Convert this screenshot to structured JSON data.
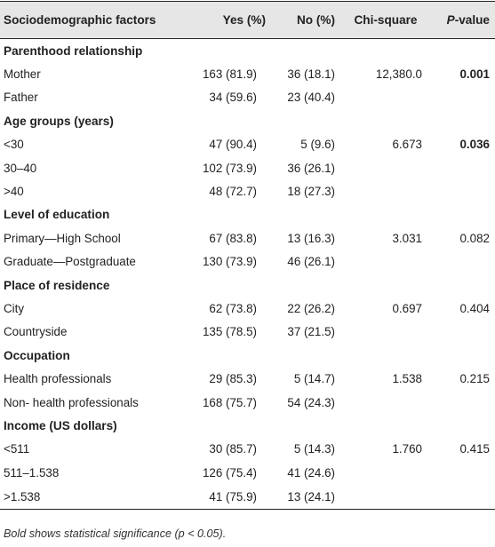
{
  "headers": {
    "factor": "Sociodemographic factors",
    "yes": "Yes (%)",
    "no": "No (%)",
    "chi": "Chi-square",
    "p_italic": "P",
    "p_rest": "-value"
  },
  "sections": [
    {
      "title": "Parenthood relationship",
      "rows": [
        {
          "label": "Mother",
          "yes": "163 (81.9)",
          "no": "36 (18.1)",
          "chi": "12,380.0",
          "p": "0.001",
          "p_bold": true
        },
        {
          "label": "Father",
          "yes": "34 (59.6)",
          "no": "23 (40.4)",
          "chi": "",
          "p": "",
          "p_bold": false
        }
      ]
    },
    {
      "title": "Age groups (years)",
      "rows": [
        {
          "label": "<30",
          "yes": "47 (90.4)",
          "no": "5 (9.6)",
          "chi": "6.673",
          "p": "0.036",
          "p_bold": true
        },
        {
          "label": "30–40",
          "yes": "102 (73.9)",
          "no": "36 (26.1)",
          "chi": "",
          "p": "",
          "p_bold": false
        },
        {
          "label": ">40",
          "yes": "48 (72.7)",
          "no": "18 (27.3)",
          "chi": "",
          "p": "",
          "p_bold": false
        }
      ]
    },
    {
      "title": "Level of education",
      "rows": [
        {
          "label": "Primary—High School",
          "yes": "67 (83.8)",
          "no": "13 (16.3)",
          "chi": "3.031",
          "p": "0.082",
          "p_bold": false
        },
        {
          "label": "Graduate—Postgraduate",
          "yes": "130 (73.9)",
          "no": "46 (26.1)",
          "chi": "",
          "p": "",
          "p_bold": false
        }
      ]
    },
    {
      "title": "Place of residence",
      "rows": [
        {
          "label": "City",
          "yes": "62 (73.8)",
          "no": "22 (26.2)",
          "chi": "0.697",
          "p": "0.404",
          "p_bold": false
        },
        {
          "label": "Countryside",
          "yes": "135 (78.5)",
          "no": "37 (21.5)",
          "chi": "",
          "p": "",
          "p_bold": false
        }
      ]
    },
    {
      "title": "Occupation",
      "rows": [
        {
          "label": "Health professionals",
          "yes": "29 (85.3)",
          "no": "5 (14.7)",
          "chi": "1.538",
          "p": "0.215",
          "p_bold": false
        },
        {
          "label": "Non- health professionals",
          "yes": "168 (75.7)",
          "no": "54 (24.3)",
          "chi": "",
          "p": "",
          "p_bold": false
        }
      ]
    },
    {
      "title": "Income (US dollars)",
      "rows": [
        {
          "label": "<511",
          "yes": "30 (85.7)",
          "no": "5 (14.3)",
          "chi": "1.760",
          "p": "0.415",
          "p_bold": false
        },
        {
          "label": "511–1.538",
          "yes": "126 (75.4)",
          "no": "41 (24.6)",
          "chi": "",
          "p": "",
          "p_bold": false
        },
        {
          "label": ">1.538",
          "yes": "41 (75.9)",
          "no": "13 (24.1)",
          "chi": "",
          "p": "",
          "p_bold": false
        }
      ]
    }
  ],
  "footnote": "Bold shows statistical significance (p < 0.05)."
}
